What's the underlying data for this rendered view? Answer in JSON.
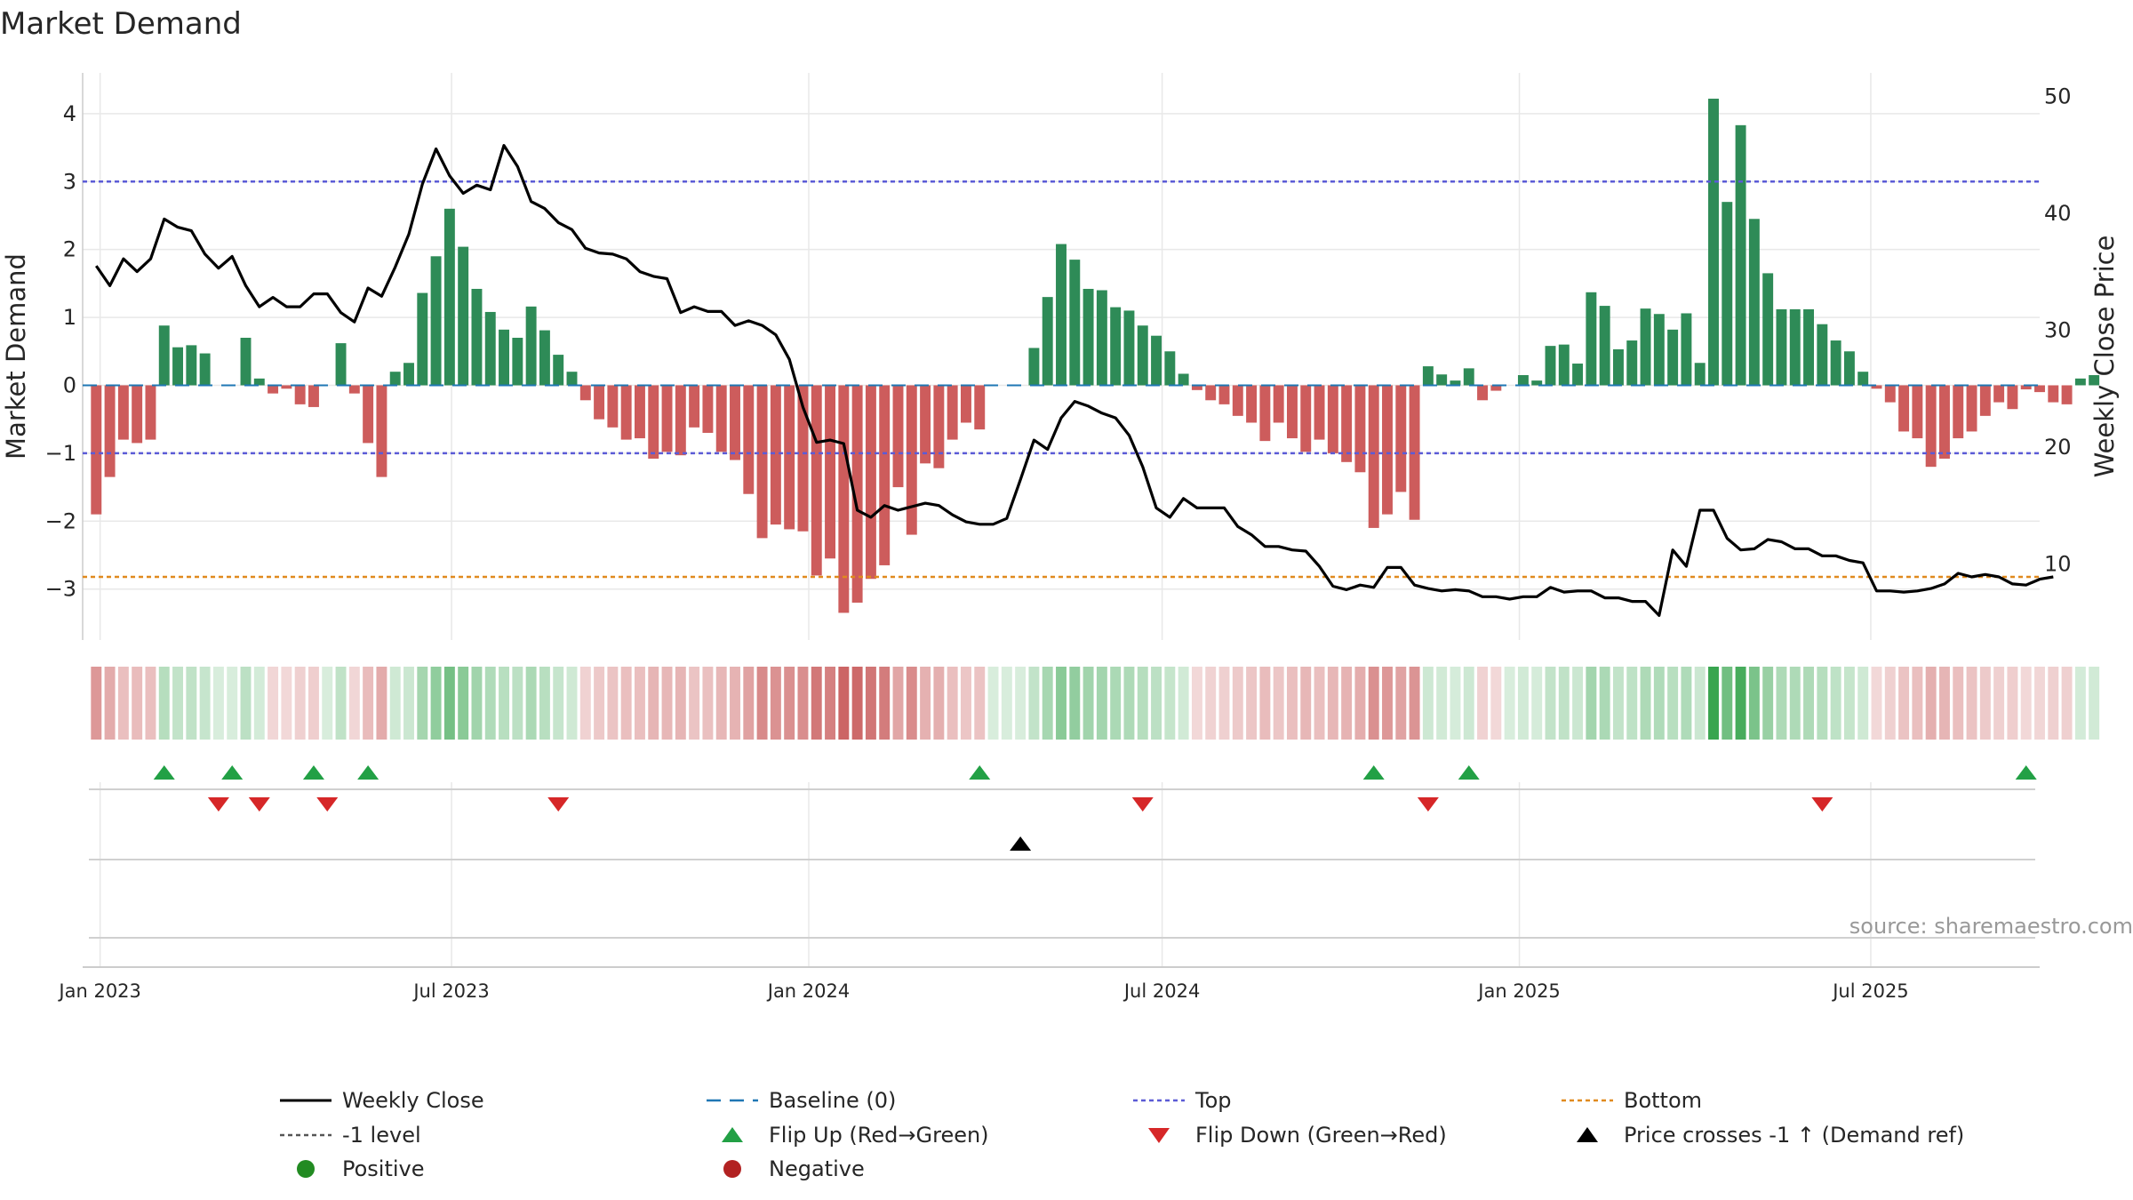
{
  "chart_data": {
    "type": "bar",
    "title": "Market Demand",
    "ylabel": "Market Demand",
    "y2label": "Weekly Close Price",
    "ylim": [
      -3.75,
      4.6
    ],
    "y2lim": [
      3.5,
      52
    ],
    "yticks": [
      -3,
      -2,
      -1,
      0,
      1,
      2,
      3,
      4
    ],
    "y2ticks": [
      10,
      20,
      30,
      40,
      50
    ],
    "x_start": "2022-12-30",
    "x_range": [
      "2022-12-23",
      "2025-09-26"
    ],
    "x_ticks": [
      {
        "label": "Jan 2023",
        "date": "2023-01-01"
      },
      {
        "label": "Jul 2023",
        "date": "2023-07-01"
      },
      {
        "label": "Jan 2024",
        "date": "2024-01-01"
      },
      {
        "label": "Jul 2024",
        "date": "2024-07-01"
      },
      {
        "label": "Jan 2025",
        "date": "2025-01-01"
      },
      {
        "label": "Jul 2025",
        "date": "2025-07-01"
      }
    ],
    "reference_lines": {
      "baseline": 0,
      "top": 3.0,
      "minus_one": -1.0,
      "bottom": -2.82
    },
    "series": [
      {
        "name": "Market Demand",
        "values": [
          -1.9,
          -1.35,
          -0.8,
          -0.85,
          -0.8,
          0.88,
          0.56,
          0.59,
          0.47,
          0,
          0,
          0.7,
          0.1,
          -0.12,
          -0.05,
          -0.28,
          -0.32,
          0,
          0.62,
          -0.12,
          -0.85,
          -1.35,
          0.2,
          0.33,
          1.36,
          1.9,
          2.6,
          2.04,
          1.42,
          1.08,
          0.82,
          0.7,
          1.16,
          0.81,
          0.45,
          0.2,
          -0.22,
          -0.5,
          -0.62,
          -0.8,
          -0.78,
          -1.08,
          -0.98,
          -1.03,
          -0.62,
          -0.7,
          -0.98,
          -1.1,
          -1.6,
          -2.25,
          -2.05,
          -2.12,
          -2.15,
          -2.8,
          -2.55,
          -3.35,
          -3.2,
          -2.85,
          -2.65,
          -1.5,
          -2.2,
          -1.15,
          -1.22,
          -0.8,
          -0.55,
          -0.65,
          0,
          0,
          0,
          0.55,
          1.3,
          2.08,
          1.85,
          1.42,
          1.4,
          1.15,
          1.1,
          0.88,
          0.73,
          0.5,
          0.17,
          -0.07,
          -0.22,
          -0.28,
          -0.45,
          -0.55,
          -0.82,
          -0.55,
          -0.78,
          -0.98,
          -0.8,
          -1.0,
          -1.13,
          -1.28,
          -2.1,
          -1.9,
          -1.57,
          -1.98,
          0.28,
          0.16,
          0.07,
          0.25,
          -0.22,
          -0.08,
          0,
          0.15,
          0.07,
          0.58,
          0.6,
          0.32,
          1.37,
          1.17,
          0.53,
          0.66,
          1.13,
          1.05,
          0.82,
          1.06,
          0.33,
          4.22,
          2.7,
          3.83,
          2.45,
          1.65,
          1.12,
          1.12,
          1.12,
          0.9,
          0.66,
          0.5,
          0.2,
          -0.05,
          -0.25,
          -0.68,
          -0.78,
          -1.2,
          -1.08,
          -0.78,
          -0.68,
          -0.45,
          -0.25,
          -0.35,
          -0.06,
          -0.1,
          -0.25,
          -0.28,
          0.1,
          0.15
        ]
      },
      {
        "name": "Weekly Close",
        "axis": "right",
        "values": [
          35.5,
          33.8,
          36.1,
          35.0,
          36.1,
          39.5,
          38.8,
          38.5,
          36.5,
          35.3,
          36.3,
          33.8,
          32.0,
          32.8,
          32.0,
          32.0,
          33.1,
          33.1,
          31.5,
          30.7,
          33.6,
          32.9,
          35.4,
          38.2,
          42.5,
          45.5,
          43.2,
          41.7,
          42.4,
          42.0,
          45.8,
          44.0,
          41.0,
          40.4,
          39.2,
          38.6,
          37.0,
          36.6,
          36.5,
          36.1,
          35.0,
          34.6,
          34.4,
          31.5,
          32.0,
          31.6,
          31.6,
          30.4,
          30.8,
          30.4,
          29.6,
          27.5,
          23.4,
          20.4,
          20.6,
          20.3,
          14.6,
          14.0,
          15.0,
          14.6,
          14.9,
          15.2,
          15.0,
          14.2,
          13.6,
          13.4,
          13.4,
          13.9,
          17.2,
          20.6,
          19.8,
          22.5,
          23.9,
          23.5,
          22.9,
          22.5,
          21.0,
          18.3,
          14.8,
          14.0,
          15.6,
          14.8,
          14.8,
          14.8,
          13.2,
          12.5,
          11.5,
          11.5,
          11.2,
          11.1,
          9.8,
          8.1,
          7.8,
          8.2,
          8.0,
          9.7,
          9.7,
          8.2,
          7.9,
          7.7,
          7.8,
          7.7,
          7.2,
          7.2,
          7.0,
          7.2,
          7.2,
          8.0,
          7.6,
          7.7,
          7.7,
          7.1,
          7.1,
          6.8,
          6.8,
          5.6,
          11.2,
          9.8,
          14.6,
          14.6,
          12.2,
          11.2,
          11.3,
          12.1,
          11.9,
          11.3,
          11.3,
          10.7,
          10.7,
          10.3,
          10.1,
          7.7,
          7.7,
          7.6,
          7.7,
          7.9,
          8.3,
          9.2,
          8.9,
          9.1,
          8.9,
          8.3,
          8.2,
          8.7,
          8.9
        ]
      }
    ],
    "flip_up_weeks": [
      5,
      10,
      16,
      20,
      65,
      94,
      101,
      142
    ],
    "flip_down_weeks": [
      9,
      12,
      17,
      34,
      77,
      98,
      127
    ],
    "price_cross_weeks": [
      68
    ],
    "source": "source: sharemaestro.com",
    "legend": [
      {
        "label": "Weekly Close",
        "kind": "solid-line",
        "color": "#000000"
      },
      {
        "label": "Baseline (0)",
        "kind": "dashed-line",
        "color": "#1f77b4"
      },
      {
        "label": "Top",
        "kind": "dotted-line",
        "color": "#5b5bd6"
      },
      {
        "label": "Bottom",
        "kind": "dotted-line",
        "color": "#e08a1e"
      },
      {
        "label": "-1 level",
        "kind": "dotted-line",
        "color": "#555555"
      },
      {
        "label": "Flip Up (Red→Green)",
        "kind": "triangle-up",
        "color": "#22a045"
      },
      {
        "label": "Flip Down (Green→Red)",
        "kind": "triangle-down",
        "color": "#d62728"
      },
      {
        "label": "Price crosses -1 ↑ (Demand ref)",
        "kind": "triangle-up",
        "color": "#000000"
      },
      {
        "label": "Positive",
        "kind": "circle",
        "color": "#228b22"
      },
      {
        "label": "Negative",
        "kind": "circle",
        "color": "#b22222"
      }
    ],
    "colors": {
      "positive": "#2e8b57",
      "negative": "#cd5c5c",
      "line": "#000000",
      "grid": "#e8e8e8",
      "axis": "#cccccc"
    }
  }
}
